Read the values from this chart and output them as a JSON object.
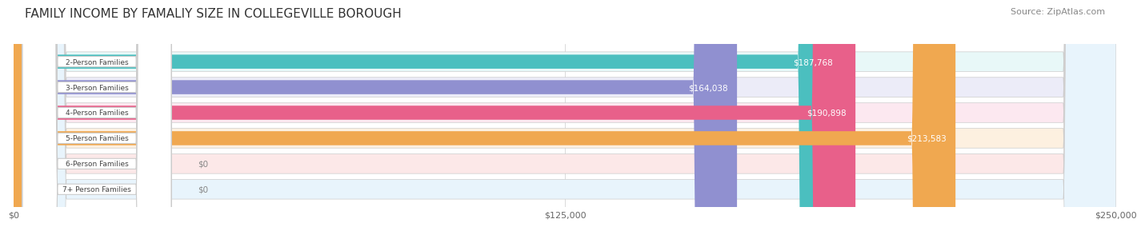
{
  "title": "FAMILY INCOME BY FAMALIY SIZE IN COLLEGEVILLE BOROUGH",
  "source": "Source: ZipAtlas.com",
  "categories": [
    "2-Person Families",
    "3-Person Families",
    "4-Person Families",
    "5-Person Families",
    "6-Person Families",
    "7+ Person Families"
  ],
  "values": [
    187768,
    164038,
    190898,
    213583,
    0,
    0
  ],
  "bar_colors": [
    "#4bbfbf",
    "#9090d0",
    "#e8608a",
    "#f0a850",
    "#f0a0a0",
    "#a0c8e8"
  ],
  "bg_colors": [
    "#e8f8f8",
    "#ececf8",
    "#fce8f0",
    "#fdf0e0",
    "#fce8e8",
    "#e8f4fc"
  ],
  "label_bg": "#ffffff",
  "value_color": "#ffffff",
  "xmax": 250000,
  "xticks": [
    0,
    125000,
    250000
  ],
  "xtick_labels": [
    "$0",
    "$125,000",
    "$250,000"
  ],
  "title_fontsize": 11,
  "source_fontsize": 8,
  "bar_height": 0.55,
  "background_color": "#ffffff"
}
